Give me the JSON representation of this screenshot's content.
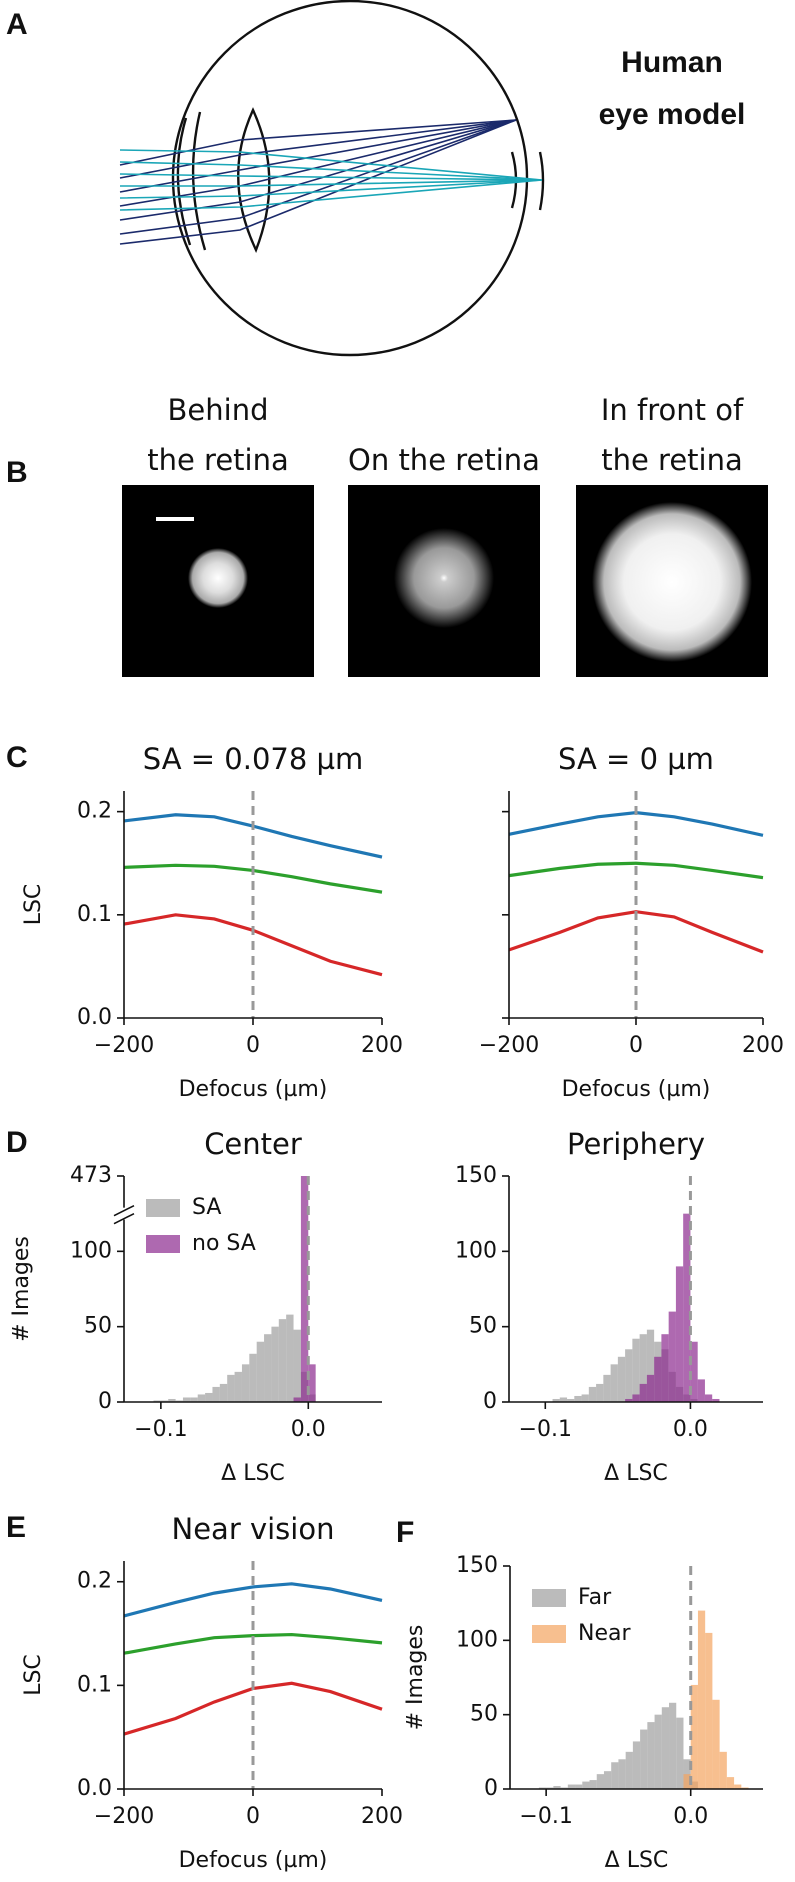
{
  "panel_a": {
    "label": "A",
    "title": [
      "Human",
      "eye model"
    ]
  },
  "panel_b": {
    "label": "B",
    "titles": [
      [
        "Behind",
        "the retina"
      ],
      [
        "On the retina"
      ],
      [
        "In front of",
        "the retina"
      ]
    ]
  },
  "chart_data": [
    {
      "type": "line",
      "panel_label": "C",
      "title": "SA = 0.078 µm",
      "xlabel": "Defocus (µm)",
      "ylabel": "LSC",
      "x": [
        -200,
        -120,
        -60,
        0,
        60,
        120,
        200
      ],
      "series": [
        {
          "color": "#1f77b4",
          "values": [
            0.191,
            0.197,
            0.195,
            0.186,
            0.176,
            0.167,
            0.156
          ]
        },
        {
          "color": "#2ca02c",
          "values": [
            0.146,
            0.148,
            0.147,
            0.143,
            0.137,
            0.13,
            0.122
          ]
        },
        {
          "color": "#d62728",
          "values": [
            0.091,
            0.1,
            0.096,
            0.085,
            0.07,
            0.055,
            0.042
          ]
        }
      ],
      "xlim": [
        -200,
        200
      ],
      "xticks": [
        {
          "value": -200,
          "label": "−200"
        },
        0,
        200
      ],
      "ylim": [
        0,
        0.22
      ],
      "yticks": [
        {
          "value": 0,
          "label": "0.0"
        },
        0.1,
        0.2
      ],
      "vline": 0
    },
    {
      "type": "line",
      "title": "SA = 0 µm",
      "xlabel": "Defocus (µm)",
      "x": [
        -200,
        -120,
        -60,
        0,
        60,
        120,
        200
      ],
      "series": [
        {
          "color": "#1f77b4",
          "values": [
            0.178,
            0.188,
            0.195,
            0.199,
            0.195,
            0.188,
            0.177
          ]
        },
        {
          "color": "#2ca02c",
          "values": [
            0.138,
            0.145,
            0.149,
            0.15,
            0.148,
            0.143,
            0.136
          ]
        },
        {
          "color": "#d62728",
          "values": [
            0.066,
            0.083,
            0.097,
            0.103,
            0.098,
            0.083,
            0.064
          ]
        }
      ],
      "xlim": [
        -200,
        200
      ],
      "xticks": [
        {
          "value": -200,
          "label": "−200"
        },
        0,
        200
      ],
      "ylim": [
        0,
        0.22
      ],
      "yticks": [
        0,
        0.1,
        0.2
      ],
      "yticklabels": false,
      "vline": 0
    },
    {
      "type": "histogram",
      "panel_label": "D",
      "title": "Center",
      "xlabel": "Δ LSC",
      "ylabel": "# Images",
      "bins": [
        -0.105,
        -0.1,
        -0.095,
        -0.09,
        -0.085,
        -0.08,
        -0.075,
        -0.07,
        -0.065,
        -0.06,
        -0.055,
        -0.05,
        -0.045,
        -0.04,
        -0.035,
        -0.03,
        -0.025,
        -0.02,
        -0.015,
        -0.01,
        -0.005,
        0,
        0.005,
        0.01,
        0.015,
        0.02,
        0.025,
        0.03,
        0.035,
        0.04,
        0.045
      ],
      "series": [
        {
          "name": "SA",
          "color": "#9e9e9e",
          "values": [
            1,
            1,
            2,
            1,
            3,
            3,
            5,
            6,
            10,
            12,
            18,
            20,
            25,
            32,
            40,
            45,
            50,
            55,
            58,
            48,
            20,
            5,
            0,
            0,
            0,
            0,
            0,
            0,
            0,
            0
          ]
        },
        {
          "name": "no SA",
          "color": "#8b2a8e",
          "values": [
            0,
            0,
            0,
            0,
            0,
            0,
            0,
            0,
            0,
            0,
            0,
            0,
            0,
            0,
            0,
            0,
            0,
            0,
            0,
            3,
            473,
            25,
            0,
            0,
            0,
            0,
            0,
            0,
            0,
            0
          ]
        }
      ],
      "xlim": [
        -0.125,
        0.05
      ],
      "xticks": [
        {
          "value": -0.1,
          "label": "−0.1"
        },
        {
          "value": 0,
          "label": "0.0"
        }
      ],
      "ylim": [
        0,
        473
      ],
      "ybreak": [
        125,
        150
      ],
      "yticks": [
        0,
        50,
        100,
        473
      ],
      "vline": 0,
      "legend": "upper left"
    },
    {
      "type": "histogram",
      "title": "Periphery",
      "xlabel": "Δ LSC",
      "bins": [
        -0.105,
        -0.1,
        -0.095,
        -0.09,
        -0.085,
        -0.08,
        -0.075,
        -0.07,
        -0.065,
        -0.06,
        -0.055,
        -0.05,
        -0.045,
        -0.04,
        -0.035,
        -0.03,
        -0.025,
        -0.02,
        -0.015,
        -0.01,
        -0.005,
        0,
        0.005,
        0.01,
        0.015,
        0.02,
        0.025,
        0.03,
        0.035,
        0.04,
        0.045
      ],
      "series": [
        {
          "color": "#9e9e9e",
          "values": [
            0,
            0,
            2,
            3,
            2,
            4,
            5,
            10,
            12,
            18,
            25,
            30,
            35,
            42,
            45,
            48,
            40,
            35,
            20,
            10,
            5,
            2,
            0,
            0,
            0,
            0,
            0,
            0,
            0,
            0
          ]
        },
        {
          "color": "#8b2a8e",
          "values": [
            0,
            0,
            0,
            0,
            0,
            0,
            0,
            0,
            0,
            0,
            0,
            0,
            2,
            5,
            12,
            18,
            30,
            45,
            60,
            90,
            125,
            40,
            15,
            5,
            2,
            0,
            0,
            0,
            0,
            0
          ]
        }
      ],
      "xlim": [
        -0.125,
        0.05
      ],
      "xticks": [
        {
          "value": -0.1,
          "label": "−0.1"
        },
        {
          "value": 0,
          "label": "0.0"
        }
      ],
      "ylim": [
        0,
        150
      ],
      "yticks": [
        0,
        50,
        100,
        150
      ],
      "vline": 0
    },
    {
      "type": "line",
      "panel_label": "E",
      "title": "Near vision",
      "xlabel": "Defocus (µm)",
      "ylabel": "LSC",
      "x": [
        -200,
        -120,
        -60,
        0,
        60,
        120,
        200
      ],
      "series": [
        {
          "color": "#1f77b4",
          "values": [
            0.167,
            0.18,
            0.189,
            0.195,
            0.198,
            0.193,
            0.182
          ]
        },
        {
          "color": "#2ca02c",
          "values": [
            0.131,
            0.14,
            0.146,
            0.148,
            0.149,
            0.146,
            0.141
          ]
        },
        {
          "color": "#d62728",
          "values": [
            0.053,
            0.068,
            0.084,
            0.097,
            0.102,
            0.094,
            0.077
          ]
        }
      ],
      "xlim": [
        -200,
        200
      ],
      "xticks": [
        {
          "value": -200,
          "label": "−200"
        },
        0,
        200
      ],
      "ylim": [
        0,
        0.22
      ],
      "yticks": [
        {
          "value": 0,
          "label": "0.0"
        },
        0.1,
        0.2
      ],
      "vline": 0
    },
    {
      "type": "histogram",
      "panel_label": "F",
      "xlabel": "Δ LSC",
      "ylabel": "# Images",
      "bins": [
        -0.105,
        -0.1,
        -0.095,
        -0.09,
        -0.085,
        -0.08,
        -0.075,
        -0.07,
        -0.065,
        -0.06,
        -0.055,
        -0.05,
        -0.045,
        -0.04,
        -0.035,
        -0.03,
        -0.025,
        -0.02,
        -0.015,
        -0.01,
        -0.005,
        0,
        0.005,
        0.01,
        0.015,
        0.02,
        0.025,
        0.03,
        0.035,
        0.04,
        0.045
      ],
      "series": [
        {
          "name": "Far",
          "color": "#9e9e9e",
          "values": [
            1,
            1,
            2,
            1,
            3,
            3,
            5,
            6,
            10,
            12,
            18,
            20,
            25,
            32,
            40,
            45,
            50,
            55,
            58,
            48,
            20,
            5,
            0,
            0,
            0,
            0,
            0,
            0,
            0,
            0
          ]
        },
        {
          "name": "Near",
          "color": "#f4a460",
          "values": [
            0,
            0,
            0,
            0,
            0,
            0,
            0,
            0,
            0,
            0,
            0,
            0,
            0,
            0,
            0,
            0,
            0,
            0,
            0,
            0,
            10,
            70,
            120,
            105,
            60,
            25,
            8,
            3,
            1,
            0
          ]
        }
      ],
      "xlim": [
        -0.125,
        0.05
      ],
      "xticks": [
        {
          "value": -0.1,
          "label": "−0.1"
        },
        {
          "value": 0,
          "label": "0.0"
        }
      ],
      "ylim": [
        0,
        150
      ],
      "yticks": [
        0,
        50,
        100,
        150
      ],
      "vline": 0,
      "legend": "upper left"
    }
  ]
}
